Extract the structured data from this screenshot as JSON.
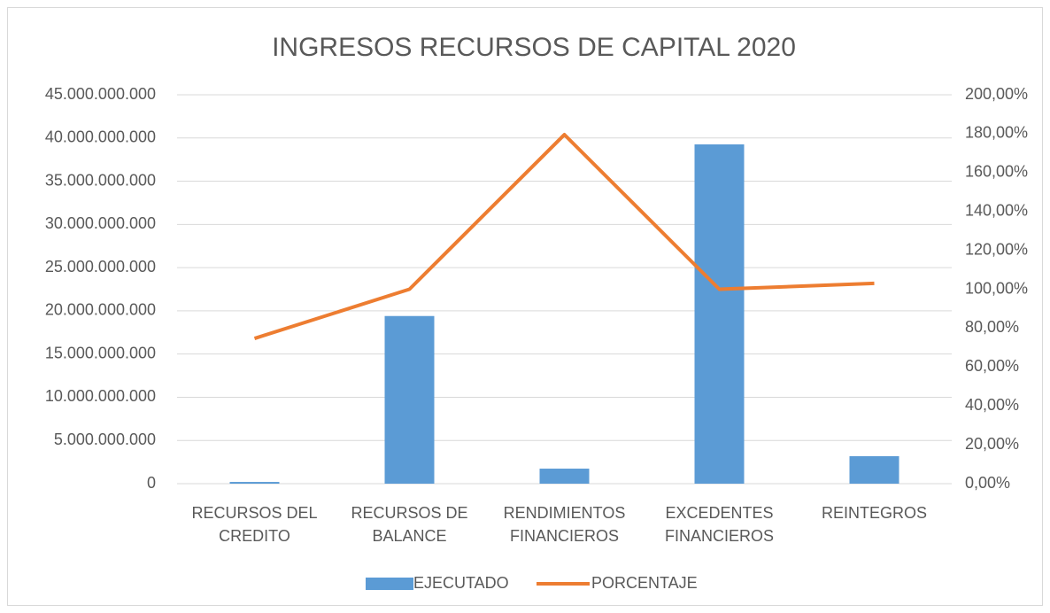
{
  "chart_data": {
    "type": "bar_line",
    "title": "INGRESOS RECURSOS DE CAPITAL 2020",
    "categories": [
      "RECURSOS DEL CREDITO",
      "RECURSOS DE BALANCE",
      "RENDIMIENTOS FINANCIEROS",
      "EXCEDENTES FINANCIEROS",
      "REINTEGROS"
    ],
    "series": [
      {
        "name": "EJECUTADO",
        "type": "bar",
        "color": "#5b9bd5",
        "values": [
          200000000,
          19400000000,
          1740000000,
          39260000000,
          3180000000
        ]
      },
      {
        "name": "PORCENTAJE",
        "type": "line",
        "axis": "y2",
        "color": "#ed7d31",
        "values": [
          74.7,
          100,
          179.5,
          100,
          103
        ]
      }
    ],
    "ylim": [
      0,
      45000000000
    ],
    "yticks": [
      0,
      {
        "value": 5000000000,
        "label": "5.000.000.000"
      },
      {
        "value": 10000000000,
        "label": "10.000.000.000"
      },
      {
        "value": 15000000000,
        "label": "15.000.000.000"
      },
      {
        "value": 20000000000,
        "label": "20.000.000.000"
      },
      {
        "value": 25000000000,
        "label": "25.000.000.000"
      },
      {
        "value": 30000000000,
        "label": "30.000.000.000"
      },
      {
        "value": 35000000000,
        "label": "35.000.000.000"
      },
      {
        "value": 40000000000,
        "label": "40.000.000.000"
      },
      {
        "value": 45000000000,
        "label": "45.000.000.000"
      }
    ],
    "y2lim": [
      0,
      200
    ],
    "y2ticks": [
      {
        "value": 0,
        "label": "0,00%"
      },
      {
        "value": 20,
        "label": "20,00%"
      },
      {
        "value": 40,
        "label": "40,00%"
      },
      {
        "value": 60,
        "label": "60,00%"
      },
      {
        "value": 80,
        "label": "80,00%"
      },
      {
        "value": 100,
        "label": "100,00%"
      },
      {
        "value": 120,
        "label": "120,00%"
      },
      {
        "value": 140,
        "label": "140,00%"
      },
      {
        "value": 160,
        "label": "160,00%"
      },
      {
        "value": 180,
        "label": "180,00%"
      },
      {
        "value": 200,
        "label": "200,00%"
      }
    ],
    "grid": true,
    "legend": "bottom"
  }
}
